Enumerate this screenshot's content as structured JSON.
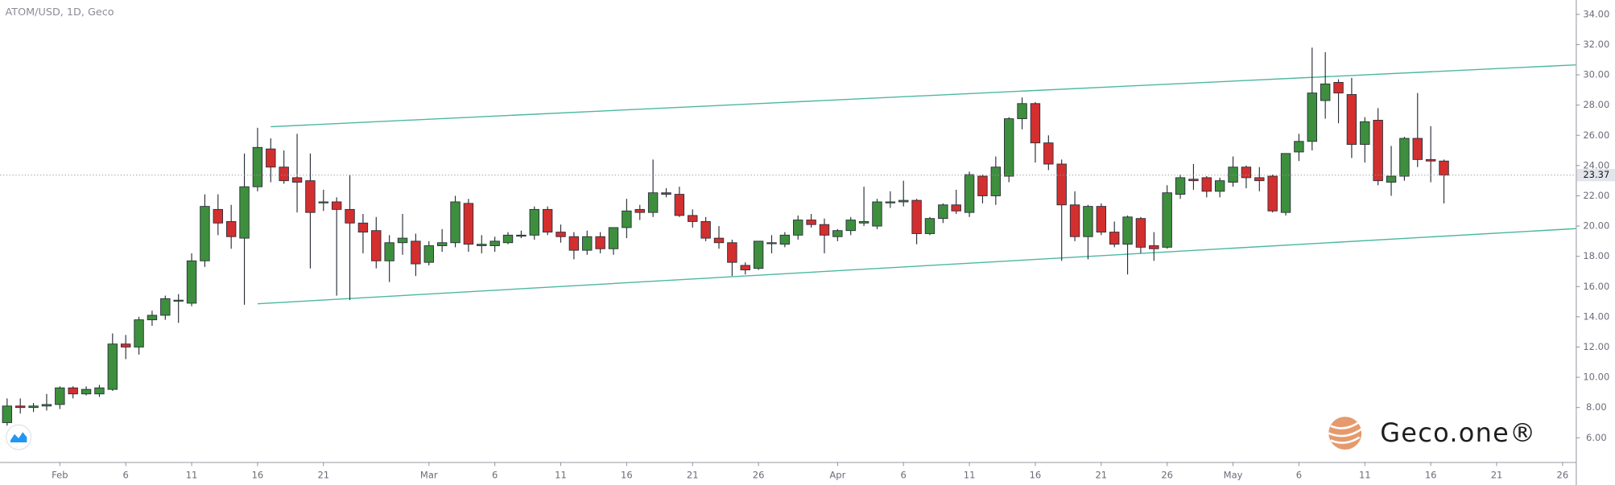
{
  "chart_data": {
    "type": "candlestick",
    "title": "ATOM/USD, 1D, Geco",
    "watermark": "Geco.one®",
    "up_color": "#3d8f3d",
    "down_color": "#d32f2f",
    "channel_color": "#4cb8a0",
    "x": [
      "01-28",
      "01-29",
      "01-30",
      "01-31",
      "02-01",
      "02-02",
      "02-03",
      "02-04",
      "02-05",
      "02-06",
      "02-07",
      "02-08",
      "02-09",
      "02-10",
      "02-11",
      "02-12",
      "02-13",
      "02-14",
      "02-15",
      "02-16",
      "02-17",
      "02-18",
      "02-19",
      "02-20",
      "02-21",
      "02-22",
      "02-23",
      "02-24",
      "02-25",
      "02-26",
      "02-27",
      "02-28",
      "03-01",
      "03-02",
      "03-03",
      "03-04",
      "03-05",
      "03-06",
      "03-07",
      "03-08",
      "03-09",
      "03-10",
      "03-11",
      "03-12",
      "03-13",
      "03-14",
      "03-15",
      "03-16",
      "03-17",
      "03-18",
      "03-19",
      "03-20",
      "03-21",
      "03-22",
      "03-23",
      "03-24",
      "03-25",
      "03-26",
      "03-27",
      "03-28",
      "03-29",
      "03-30",
      "03-31",
      "04-01",
      "04-02",
      "04-03",
      "04-04",
      "04-05",
      "04-06",
      "04-07",
      "04-08",
      "04-09",
      "04-10",
      "04-11",
      "04-12",
      "04-13",
      "04-14",
      "04-15",
      "04-16",
      "04-17",
      "04-18",
      "04-19",
      "04-20",
      "04-21",
      "04-22",
      "04-23",
      "04-24",
      "04-25",
      "04-26",
      "04-27",
      "04-28",
      "04-29",
      "04-30",
      "05-01",
      "05-02",
      "05-03",
      "05-04",
      "05-05",
      "05-06",
      "05-07",
      "05-08",
      "05-09",
      "05-10",
      "05-11",
      "05-12",
      "05-13",
      "05-14",
      "05-15",
      "05-16",
      "05-17"
    ],
    "open": [
      7.0,
      8.1,
      8.0,
      8.1,
      8.2,
      9.3,
      8.9,
      8.9,
      9.2,
      12.2,
      12.0,
      13.8,
      14.1,
      15.1,
      14.9,
      17.7,
      21.1,
      20.3,
      19.2,
      22.6,
      25.1,
      23.9,
      23.2,
      23.0,
      21.6,
      21.6,
      21.1,
      20.2,
      19.7,
      17.7,
      18.9,
      19.0,
      17.6,
      18.7,
      18.9,
      21.5,
      18.7,
      18.7,
      18.9,
      19.4,
      19.4,
      21.1,
      19.6,
      19.3,
      18.4,
      19.3,
      18.5,
      19.9,
      21.1,
      20.9,
      22.2,
      22.1,
      20.7,
      20.3,
      19.2,
      18.9,
      17.4,
      17.2,
      18.9,
      18.8,
      19.4,
      20.4,
      20.1,
      19.3,
      19.7,
      20.2,
      20.0,
      21.6,
      21.6,
      21.7,
      19.5,
      20.5,
      21.4,
      20.9,
      23.3,
      22.0,
      23.3,
      27.1,
      28.1,
      25.5,
      24.1,
      21.4,
      19.3,
      21.3,
      19.6,
      18.8,
      20.5,
      18.7,
      18.6,
      22.1,
      23.1,
      23.2,
      22.3,
      22.9,
      23.9,
      23.2,
      23.3,
      20.9,
      24.9,
      25.6,
      28.3,
      29.5,
      28.7,
      25.4,
      27.0,
      22.9,
      23.3,
      25.8,
      24.4,
      24.3
    ],
    "high": [
      8.6,
      8.6,
      8.3,
      8.9,
      9.4,
      9.4,
      9.4,
      9.5,
      12.9,
      12.8,
      14.0,
      14.4,
      15.4,
      15.5,
      18.2,
      22.1,
      22.1,
      21.4,
      24.8,
      26.5,
      25.8,
      25.0,
      26.1,
      24.8,
      22.4,
      21.9,
      23.4,
      20.8,
      20.6,
      19.4,
      20.8,
      19.5,
      19.0,
      19.8,
      22.0,
      21.8,
      19.4,
      19.3,
      19.6,
      19.7,
      21.3,
      21.3,
      20.1,
      19.6,
      19.7,
      19.6,
      19.9,
      21.8,
      21.4,
      24.4,
      22.5,
      22.6,
      21.1,
      20.6,
      20.0,
      19.1,
      17.6,
      19.0,
      19.4,
      19.6,
      20.7,
      20.8,
      20.5,
      19.8,
      20.6,
      22.6,
      21.8,
      22.3,
      23.0,
      21.8,
      20.6,
      21.5,
      22.4,
      23.6,
      23.4,
      24.6,
      27.2,
      28.5,
      28.2,
      26.0,
      24.4,
      22.3,
      21.4,
      21.5,
      20.3,
      20.7,
      20.6,
      19.6,
      22.7,
      23.4,
      24.1,
      23.3,
      23.2,
      24.6,
      24.0,
      23.9,
      23.4,
      24.8,
      26.1,
      31.8,
      31.5,
      29.7,
      29.8,
      27.2,
      27.8,
      25.3,
      25.9,
      28.8,
      26.6,
      24.4
    ],
    "low": [
      6.8,
      7.6,
      7.7,
      7.8,
      7.9,
      8.6,
      8.8,
      8.7,
      9.1,
      11.2,
      11.5,
      13.4,
      13.8,
      13.6,
      14.7,
      17.3,
      19.4,
      18.5,
      14.8,
      22.3,
      22.9,
      22.8,
      20.9,
      17.2,
      21.0,
      15.4,
      15.1,
      18.2,
      17.2,
      16.3,
      18.1,
      16.7,
      17.4,
      18.3,
      18.6,
      18.3,
      18.2,
      18.3,
      18.8,
      19.2,
      19.1,
      19.4,
      18.9,
      17.8,
      18.1,
      18.2,
      18.1,
      19.2,
      20.4,
      20.6,
      21.9,
      20.6,
      19.9,
      19.0,
      18.5,
      16.7,
      16.8,
      17.1,
      18.2,
      18.6,
      19.1,
      19.9,
      18.2,
      19.0,
      19.4,
      20.0,
      19.8,
      21.2,
      21.3,
      18.8,
      19.4,
      20.2,
      20.8,
      20.6,
      21.5,
      21.4,
      22.9,
      26.4,
      24.2,
      23.7,
      17.7,
      19.0,
      17.8,
      19.4,
      18.6,
      16.8,
      18.2,
      17.7,
      18.5,
      21.8,
      22.4,
      21.9,
      21.9,
      22.6,
      22.5,
      22.3,
      20.9,
      20.7,
      24.3,
      25.0,
      27.1,
      26.8,
      24.5,
      24.2,
      22.7,
      22.0,
      23.0,
      23.9,
      22.9,
      21.5
    ],
    "close": [
      8.1,
      8.0,
      8.1,
      8.2,
      9.3,
      8.9,
      9.2,
      9.3,
      12.2,
      12.0,
      13.8,
      14.1,
      15.2,
      15.1,
      17.7,
      21.3,
      20.2,
      19.3,
      22.6,
      25.2,
      23.9,
      23.0,
      22.9,
      20.9,
      21.6,
      21.1,
      20.2,
      19.6,
      17.7,
      18.9,
      19.2,
      17.5,
      18.7,
      18.9,
      21.6,
      18.8,
      18.8,
      19.0,
      19.4,
      19.4,
      21.1,
      19.6,
      19.3,
      18.4,
      19.3,
      18.5,
      19.9,
      21.0,
      20.9,
      22.2,
      22.1,
      20.7,
      20.3,
      19.2,
      18.9,
      17.6,
      17.1,
      19.0,
      18.9,
      19.4,
      20.4,
      20.1,
      19.4,
      19.7,
      20.4,
      20.3,
      21.6,
      21.6,
      21.7,
      19.5,
      20.5,
      21.4,
      21.0,
      23.4,
      22.0,
      23.9,
      27.1,
      28.1,
      25.5,
      24.1,
      21.4,
      19.3,
      21.3,
      19.6,
      18.8,
      20.6,
      18.6,
      18.5,
      22.2,
      23.2,
      23.0,
      22.3,
      23.0,
      23.9,
      23.2,
      23.0,
      21.0,
      24.8,
      25.6,
      28.8,
      29.4,
      28.8,
      25.4,
      26.9,
      23.0,
      23.3,
      25.8,
      24.4,
      24.3,
      23.37
    ],
    "trendlines": [
      {
        "x": [
          "02-17",
          "05-27"
        ],
        "y": [
          26.57,
          30.66
        ]
      },
      {
        "x": [
          "02-16",
          "05-27"
        ],
        "y": [
          14.86,
          19.83
        ]
      }
    ],
    "xlim": [
      "01-27",
      "05-27"
    ],
    "ylim": [
      4.4,
      34.95
    ],
    "yticks": [
      {
        "value": 6,
        "label": "6.00"
      },
      {
        "value": 8,
        "label": "8.00"
      },
      {
        "value": 10,
        "label": "10.00"
      },
      {
        "value": 12,
        "label": "12.00"
      },
      {
        "value": 14,
        "label": "14.00"
      },
      {
        "value": 16,
        "label": "16.00"
      },
      {
        "value": 18,
        "label": "18.00"
      },
      {
        "value": 20,
        "label": "20.00"
      },
      {
        "value": 22,
        "label": "22.00"
      },
      {
        "value": 24,
        "label": "24.00"
      },
      {
        "value": 26,
        "label": "26.00"
      },
      {
        "value": 28,
        "label": "28.00"
      },
      {
        "value": 30,
        "label": "30.00"
      },
      {
        "value": 32,
        "label": "32.00"
      },
      {
        "value": 34,
        "label": "34.00"
      }
    ],
    "xticks": [
      {
        "value": "02-01",
        "label": "Feb"
      },
      {
        "value": "02-06",
        "label": "6"
      },
      {
        "value": "02-11",
        "label": "11"
      },
      {
        "value": "02-16",
        "label": "16"
      },
      {
        "value": "02-21",
        "label": "21"
      },
      {
        "value": "03-01",
        "label": "Mar"
      },
      {
        "value": "03-06",
        "label": "6"
      },
      {
        "value": "03-11",
        "label": "11"
      },
      {
        "value": "03-16",
        "label": "16"
      },
      {
        "value": "03-21",
        "label": "21"
      },
      {
        "value": "03-26",
        "label": "26"
      },
      {
        "value": "04-01",
        "label": "Apr"
      },
      {
        "value": "04-06",
        "label": "6"
      },
      {
        "value": "04-11",
        "label": "11"
      },
      {
        "value": "04-16",
        "label": "16"
      },
      {
        "value": "04-21",
        "label": "21"
      },
      {
        "value": "04-26",
        "label": "26"
      },
      {
        "value": "05-01",
        "label": "May"
      },
      {
        "value": "05-06",
        "label": "6"
      },
      {
        "value": "05-11",
        "label": "11"
      },
      {
        "value": "05-16",
        "label": "16"
      },
      {
        "value": "05-21",
        "label": "21"
      },
      {
        "value": "05-26",
        "label": "26"
      }
    ]
  }
}
